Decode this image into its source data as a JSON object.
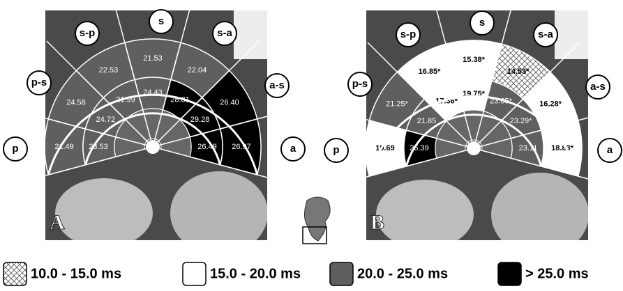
{
  "panels": [
    {
      "letter": "A",
      "directions": [
        "p",
        "p-s",
        "s-p",
        "s",
        "s-a",
        "a-s",
        "a"
      ],
      "outer": [
        {
          "label": "21.49",
          "fill": "gray"
        },
        {
          "label": "24.58",
          "fill": "gray"
        },
        {
          "label": "22.53",
          "fill": "gray"
        },
        {
          "label": "21.53",
          "fill": "gray"
        },
        {
          "label": "22.04",
          "fill": "gray"
        },
        {
          "label": "26.40",
          "fill": "black"
        },
        {
          "label": "26.97",
          "fill": "black"
        }
      ],
      "middle": [
        {
          "label": "23.53",
          "fill": "gray"
        },
        {
          "label": "24.72",
          "fill": "gray"
        },
        {
          "label": "21.99",
          "fill": "gray"
        },
        {
          "label": "24.43",
          "fill": "gray"
        },
        {
          "label": "28.81",
          "fill": "black"
        },
        {
          "label": "29.28",
          "fill": "black"
        },
        {
          "label": "26.49",
          "fill": "black"
        }
      ]
    },
    {
      "letter": "B",
      "directions": [
        "p",
        "p-s",
        "s-p",
        "s",
        "s-a",
        "a-s",
        "a"
      ],
      "outer": [
        {
          "label": "19.69",
          "fill": "white"
        },
        {
          "label": "21.25*",
          "fill": "gray"
        },
        {
          "label": "16.85*",
          "fill": "white"
        },
        {
          "label": "15.38*",
          "fill": "white"
        },
        {
          "label": "14.53*",
          "fill": "hatch"
        },
        {
          "label": "16.28*",
          "fill": "white"
        },
        {
          "label": "18.83*",
          "fill": "white"
        }
      ],
      "middle": [
        {
          "label": "26.39",
          "fill": "black"
        },
        {
          "label": "21.85",
          "fill": "gray"
        },
        {
          "label": "17.36*",
          "fill": "white"
        },
        {
          "label": "19.75*",
          "fill": "white"
        },
        {
          "label": "23.65*",
          "fill": "gray"
        },
        {
          "label": "23.29*",
          "fill": "gray"
        },
        {
          "label": "23.11",
          "fill": "gray"
        }
      ]
    }
  ],
  "legend": [
    {
      "label": "10.0 - 15.0 ms",
      "fill": "hatch"
    },
    {
      "label": "15.0 - 20.0 ms",
      "fill": "white"
    },
    {
      "label": "20.0 - 25.0 ms",
      "fill": "gray"
    },
    {
      "label": "> 25.0 ms",
      "fill": "black"
    }
  ]
}
